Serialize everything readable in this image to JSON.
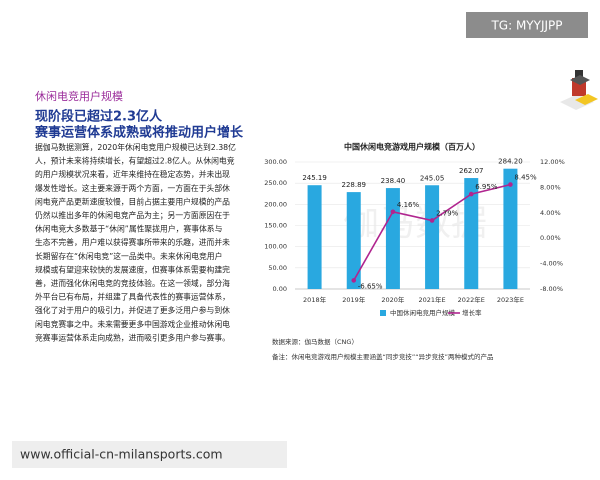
{
  "section_label": "休闲电竞用户规模",
  "headline": [
    "现阶段已超过2.3亿人",
    "赛事运营体系成熟或将推动用户增长"
  ],
  "paragraph": [
    "据伽马数据测算，2020年休闲电竞用户规模已达到2.38亿",
    "人，预计未来将持续增长，有望超过2.8亿人。从休闲电竞",
    "的用户规模状况来看，近年来维持在稳定态势，并未出现",
    "爆发性增长。这主要来源于两个方面，一方面在于头部休",
    "闲电竞产品更新速度较慢，目前占据主要用户规模的产品",
    "仍然以推出多年的休闲电竞产品为主；另一方面原因在于",
    "休闲电竞大多数基于“休闲”属性聚拢用户，赛事体系与",
    "生态不完善，用户难以获得赛事所带来的乐趣，进而并未",
    "长期留存在“休闲电竞”这一品类中。未来休闲电竞用户",
    "规模或有望迎来较快的发展速度，但赛事体系需要构建完",
    "善，进而强化休闲电竞的竞技体验。在这一领域，部分海",
    "外平台已有布局，并组建了具备代表性的赛事运营体系，",
    "强化了对于用户的吸引力，并促进了更多泛用户参与到休",
    "闲电竞赛事之中。未来需要更多中国游戏企业推动休闲电",
    "竞赛事运营体系走向成熟，进而吸引更多用户参与赛事。"
  ],
  "overlay_tag": "TG: MYYJJPP",
  "footer_url": "www.official-cn-milansports.com",
  "chart_data": {
    "type": "bar",
    "title": "中国休闲电竞游戏用户规模（百万人）",
    "watermark": "伽马数据",
    "categories": [
      "2018年",
      "2019年",
      "2020年",
      "2021年E",
      "2022年E",
      "2023年E"
    ],
    "series": [
      {
        "name": "中国休闲电竞用户规模",
        "type": "bar",
        "color": "#29a8e0",
        "values": [
          245.19,
          228.89,
          238.4,
          245.05,
          262.07,
          284.2
        ],
        "value_labels": [
          "245.19",
          "228.89",
          "238.40",
          "245.05",
          "262.07",
          "284.20"
        ]
      },
      {
        "name": "增长率",
        "type": "line",
        "axis": "y2",
        "color": "#b0258f",
        "values": [
          null,
          -6.65,
          4.16,
          2.79,
          6.95,
          8.45
        ],
        "value_labels": [
          null,
          "-6.65%",
          "4.16%",
          "2.79%",
          "6.95%",
          "8.45%"
        ]
      }
    ],
    "ylim": [
      0,
      300
    ],
    "yticks": [
      {
        "value": 0,
        "label": "0.00"
      },
      {
        "value": 50,
        "label": "50.00"
      },
      {
        "value": 100,
        "label": "100.00"
      },
      {
        "value": 150,
        "label": "150.00"
      },
      {
        "value": 200,
        "label": "200.00"
      },
      {
        "value": 250,
        "label": "250.00"
      },
      {
        "value": 300,
        "label": "300.00"
      }
    ],
    "y2lim": [
      -8,
      12
    ],
    "y2ticks": [
      {
        "value": -8,
        "label": "-8.00%"
      },
      {
        "value": -4,
        "label": "-4.00%"
      },
      {
        "value": 0,
        "label": "0.00%"
      },
      {
        "value": 4,
        "label": "4.00%"
      },
      {
        "value": 8,
        "label": "8.00%"
      },
      {
        "value": 12,
        "label": "12.00%"
      }
    ],
    "grid": true,
    "source": "数据来源：伽马数据（CNG）",
    "note": "备注：休闲电竞游戏用户规模主要涵盖“同步竞技”“异步竞技”两种模式的产品"
  }
}
